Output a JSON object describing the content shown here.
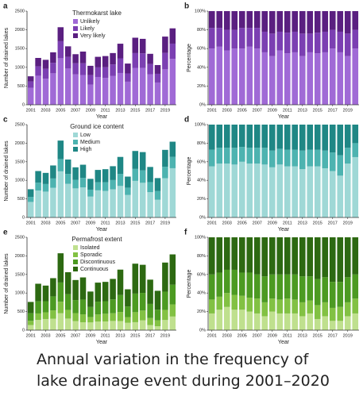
{
  "chart_data": [
    {
      "type": "bar",
      "stacked": true,
      "panel_label": "a",
      "legend_title": "Thermokarst lake",
      "legend": "upper left",
      "xlabel": "Year",
      "ylabel": "Number of drained lakes",
      "categories": [
        "2001",
        null,
        "2003",
        null,
        "2005",
        null,
        "2007",
        null,
        "2009",
        null,
        "2011",
        null,
        "2013",
        null,
        "2015",
        null,
        "2017",
        null,
        "2019",
        null
      ],
      "series": [
        {
          "name": "Unlikely",
          "color": "#a06ad6",
          "values": [
            456,
            775,
            696,
            840,
            1242,
            967,
            810,
            795,
            541,
            742,
            715,
            773,
            848,
            616,
            985,
            986,
            816,
            594,
            946,
            1224
          ]
        },
        {
          "name": "Likely",
          "color": "#7b3fb2",
          "values": [
            167,
            250,
            264,
            280,
            455,
            312,
            297,
            312,
            250,
            256,
            286,
            304,
            391,
            220,
            394,
            387,
            272,
            233,
            437,
            408
          ]
        },
        {
          "name": "Very likely",
          "color": "#5a1f80",
          "values": [
            137,
            225,
            240,
            280,
            373,
            281,
            243,
            313,
            249,
            282,
            299,
            303,
            391,
            264,
            411,
            387,
            272,
            233,
            437,
            408
          ]
        }
      ],
      "ylim": [
        0,
        2500
      ],
      "yticks": [
        0,
        500,
        1000,
        1500,
        2000,
        2500
      ]
    },
    {
      "type": "bar",
      "stacked": true,
      "panel_label": "b",
      "xlabel": "Year",
      "ylabel": "Percentage",
      "categories": [
        "2001",
        null,
        "2003",
        null,
        "2005",
        null,
        "2007",
        null,
        "2009",
        null,
        "2011",
        null,
        "2013",
        null,
        "2015",
        null,
        "2017",
        null,
        "2019",
        null
      ],
      "series": [
        {
          "name": "Unlikely",
          "color": "#a06ad6",
          "values": [
            60,
            62,
            58,
            60,
            60,
            62,
            60,
            56,
            52,
            58,
            55,
            56,
            52,
            56,
            55,
            56,
            60,
            56,
            52,
            60
          ]
        },
        {
          "name": "Likely",
          "color": "#7b3fb2",
          "values": [
            22,
            20,
            22,
            20,
            22,
            20,
            22,
            22,
            24,
            20,
            22,
            22,
            24,
            20,
            22,
            22,
            20,
            22,
            24,
            20
          ]
        },
        {
          "name": "Very likely",
          "color": "#5a1f80",
          "values": [
            18,
            18,
            20,
            20,
            18,
            18,
            18,
            22,
            24,
            22,
            23,
            22,
            24,
            24,
            23,
            22,
            20,
            22,
            24,
            20
          ]
        }
      ],
      "ylim": [
        0,
        100
      ],
      "yticks": [
        {
          "value": 0,
          "label": "0%"
        },
        {
          "value": 20,
          "label": "20%"
        },
        {
          "value": 40,
          "label": "40%"
        },
        {
          "value": 60,
          "label": "60%"
        },
        {
          "value": 80,
          "label": "80%"
        },
        {
          "value": 100,
          "label": "100%"
        }
      ]
    },
    {
      "type": "bar",
      "stacked": true,
      "panel_label": "c",
      "legend_title": "Ground ice content",
      "legend": "upper left",
      "xlabel": "Year",
      "ylabel": "Number of drained lakes",
      "categories": [
        "2001",
        null,
        "2003",
        null,
        "2005",
        null,
        "2007",
        null,
        "2009",
        null,
        "2011",
        null,
        "2013",
        null,
        "2015",
        null,
        "2017",
        null,
        "2019",
        null
      ],
      "series": [
        {
          "name": "Low",
          "color": "#9fd8d6",
          "values": [
            418,
            725,
            696,
            798,
            1242,
            905,
            783,
            809,
            562,
            730,
            715,
            759,
            848,
            605,
            985,
            933,
            680,
            477,
            1056,
            1326
          ]
        },
        {
          "name": "Medium",
          "color": "#4db3b0",
          "values": [
            137,
            213,
            204,
            252,
            331,
            265,
            230,
            256,
            187,
            218,
            234,
            248,
            326,
            198,
            322,
            334,
            272,
            233,
            309,
            306
          ]
        },
        {
          "name": "High",
          "color": "#1f8785",
          "values": [
            205,
            312,
            300,
            350,
            497,
            390,
            337,
            355,
            291,
            332,
            351,
            373,
            456,
            297,
            483,
            493,
            408,
            350,
            455,
            408
          ]
        }
      ],
      "ylim": [
        0,
        2500
      ],
      "yticks": [
        0,
        500,
        1000,
        1500,
        2000,
        2500
      ]
    },
    {
      "type": "bar",
      "stacked": true,
      "panel_label": "d",
      "xlabel": "Year",
      "ylabel": "Percentage",
      "categories": [
        "2001",
        null,
        "2003",
        null,
        "2005",
        null,
        "2007",
        null,
        "2009",
        null,
        "2011",
        null,
        "2013",
        null,
        "2015",
        null,
        "2017",
        null,
        "2019",
        null
      ],
      "series": [
        {
          "name": "Low",
          "color": "#9fd8d6",
          "values": [
            55,
            58,
            58,
            57,
            60,
            58,
            58,
            57,
            54,
            57,
            55,
            55,
            52,
            55,
            55,
            53,
            50,
            45,
            58,
            65
          ]
        },
        {
          "name": "Medium",
          "color": "#4db3b0",
          "values": [
            18,
            17,
            17,
            18,
            16,
            17,
            17,
            18,
            18,
            17,
            18,
            18,
            20,
            18,
            18,
            19,
            20,
            22,
            17,
            15
          ]
        },
        {
          "name": "High",
          "color": "#1f8785",
          "values": [
            27,
            25,
            25,
            25,
            24,
            25,
            25,
            25,
            28,
            26,
            27,
            27,
            28,
            27,
            27,
            28,
            30,
            33,
            25,
            20
          ]
        }
      ],
      "ylim": [
        0,
        100
      ],
      "yticks": [
        {
          "value": 0,
          "label": "0%"
        },
        {
          "value": 20,
          "label": "20%"
        },
        {
          "value": 40,
          "label": "40%"
        },
        {
          "value": 60,
          "label": "60%"
        },
        {
          "value": 80,
          "label": "80%"
        },
        {
          "value": 100,
          "label": "100%"
        }
      ]
    },
    {
      "type": "bar",
      "stacked": true,
      "panel_label": "e",
      "legend_title": "Permafrost extent",
      "legend": "upper left",
      "xlabel": "Year",
      "ylabel": "Number of drained lakes",
      "categories": [
        "2001",
        null,
        "2003",
        null,
        "2005",
        null,
        "2007",
        null,
        "2009",
        null,
        "2011",
        null,
        "2013",
        null,
        "2015",
        null,
        "2017",
        null,
        "2019",
        null
      ],
      "series": [
        {
          "name": "Isolated",
          "color": "#bfe08e",
          "values": [
            137,
            275,
            300,
            308,
            455,
            312,
            243,
            213,
            208,
            230,
            234,
            248,
            245,
            198,
            215,
            264,
            136,
            106,
            273,
            367
          ]
        },
        {
          "name": "Sporadic",
          "color": "#82c143",
          "values": [
            114,
            175,
            180,
            224,
            311,
            234,
            216,
            213,
            146,
            192,
            208,
            207,
            245,
            154,
            269,
            264,
            190,
            159,
            273,
            326
          ]
        },
        {
          "name": "Discontinuous",
          "color": "#4c9a22",
          "values": [
            205,
            325,
            300,
            378,
            518,
            421,
            351,
            398,
            270,
            346,
            338,
            373,
            456,
            286,
            501,
            475,
            381,
            286,
            491,
            530
          ]
        },
        {
          "name": "Continuous",
          "color": "#2d6912",
          "values": [
            304,
            475,
            420,
            490,
            786,
            593,
            540,
            596,
            416,
            512,
            520,
            552,
            684,
            462,
            805,
            757,
            653,
            509,
            783,
            817
          ]
        }
      ],
      "ylim": [
        0,
        2500
      ],
      "yticks": [
        0,
        500,
        1000,
        1500,
        2000,
        2500
      ]
    },
    {
      "type": "bar",
      "stacked": true,
      "panel_label": "f",
      "xlabel": "Year",
      "ylabel": "Percentage",
      "categories": [
        "2001",
        null,
        "2003",
        null,
        "2005",
        null,
        "2007",
        null,
        "2009",
        null,
        "2011",
        null,
        "2013",
        null,
        "2015",
        null,
        "2017",
        null,
        "2019",
        null
      ],
      "series": [
        {
          "name": "Isolated",
          "color": "#bfe08e",
          "values": [
            18,
            22,
            25,
            22,
            22,
            20,
            18,
            15,
            20,
            18,
            18,
            18,
            15,
            18,
            12,
            15,
            10,
            10,
            15,
            18
          ]
        },
        {
          "name": "Sporadic",
          "color": "#82c143",
          "values": [
            15,
            14,
            15,
            16,
            15,
            15,
            16,
            15,
            14,
            15,
            16,
            15,
            15,
            14,
            15,
            15,
            14,
            15,
            15,
            16
          ]
        },
        {
          "name": "Discontinuous",
          "color": "#4c9a22",
          "values": [
            27,
            26,
            25,
            27,
            25,
            27,
            26,
            28,
            26,
            27,
            26,
            27,
            28,
            26,
            28,
            27,
            28,
            27,
            27,
            26
          ]
        },
        {
          "name": "Continuous",
          "color": "#2d6912",
          "values": [
            40,
            38,
            35,
            35,
            38,
            38,
            40,
            42,
            40,
            40,
            40,
            40,
            42,
            42,
            45,
            43,
            48,
            48,
            43,
            40
          ]
        }
      ],
      "ylim": [
        0,
        100
      ],
      "yticks": [
        {
          "value": 0,
          "label": "0%"
        },
        {
          "value": 20,
          "label": "20%"
        },
        {
          "value": 40,
          "label": "40%"
        },
        {
          "value": 60,
          "label": "60%"
        },
        {
          "value": 80,
          "label": "80%"
        },
        {
          "value": 100,
          "label": "100%"
        }
      ]
    }
  ],
  "caption": "Annual variation in the frequency of lake drainage event during 2001–2020"
}
